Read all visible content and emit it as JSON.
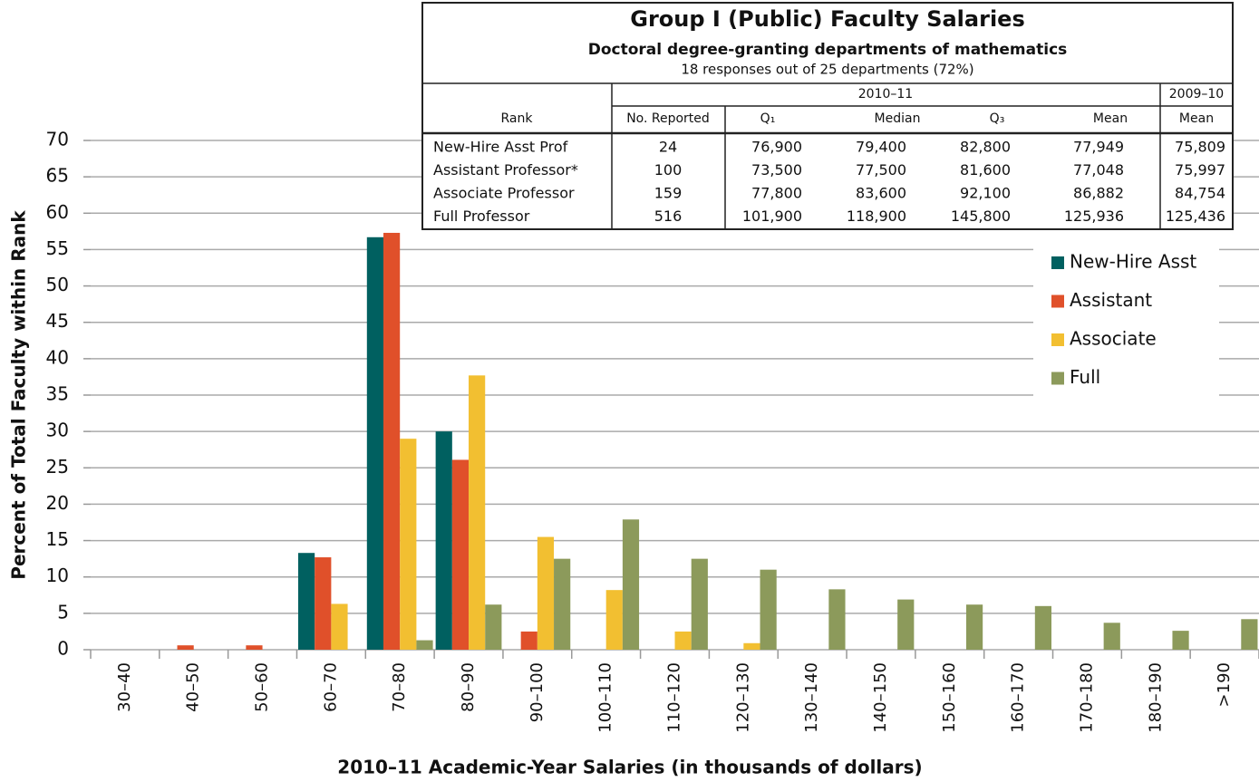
{
  "chart_data": {
    "type": "bar",
    "y_label": "Percent of Total Faculty within Rank",
    "x_label": "2010–11 Academic-Year Salaries (in thousands of dollars)",
    "categories": [
      "30–40",
      "40–50",
      "50–60",
      "60–70",
      "70–80",
      "80–90",
      "90–100",
      "100–110",
      "110–120",
      "120–130",
      "130–140",
      "140–150",
      "150–160",
      "160–170",
      "170–180",
      "180–190",
      ">190"
    ],
    "series": [
      {
        "name": "New-Hire Asst",
        "color": "#006060",
        "values": [
          0,
          0,
          0,
          13.3,
          56.7,
          30,
          0,
          0,
          0,
          0,
          0,
          0,
          0,
          0,
          0,
          0,
          0
        ]
      },
      {
        "name": "Assistant",
        "color": "#e0502a",
        "values": [
          0,
          0.6,
          0.6,
          12.7,
          57.3,
          26.1,
          2.5,
          0,
          0,
          0,
          0,
          0,
          0,
          0,
          0,
          0,
          0
        ]
      },
      {
        "name": "Associate",
        "color": "#f2bf31",
        "values": [
          0,
          0,
          0,
          6.3,
          29,
          37.7,
          15.5,
          8.2,
          2.5,
          0.9,
          0,
          0,
          0,
          0,
          0,
          0,
          0
        ]
      },
      {
        "name": "Full",
        "color": "#8c9a5b",
        "values": [
          0,
          0,
          0,
          0,
          1.3,
          6.2,
          12.5,
          17.9,
          12.5,
          11,
          8.3,
          6.9,
          6.2,
          6,
          3.7,
          2.6,
          4.2
        ]
      }
    ],
    "ylim": [
      0,
      70
    ],
    "yticks": [
      0,
      5,
      10,
      15,
      20,
      25,
      30,
      35,
      40,
      45,
      50,
      55,
      60,
      65,
      70
    ],
    "grid": true,
    "legend": "upper right"
  },
  "table": {
    "title": "Group I (Public) Faculty Salaries",
    "subtitle": "Doctoral degree-granting departments of mathematics",
    "note": "18 responses out of 25 departments (72%)",
    "year_current": "2010–11",
    "year_prior": "2009–10",
    "columns": [
      "Rank",
      "No. Reported",
      "Q₁",
      "Median",
      "Q₃",
      "Mean",
      "Mean"
    ],
    "rows": [
      [
        "New-Hire Asst Prof",
        "24",
        "76,900",
        "79,400",
        "82,800",
        "77,949",
        "75,809"
      ],
      [
        "Assistant Professor*",
        "100",
        "73,500",
        "77,500",
        "81,600",
        "77,048",
        "75,997"
      ],
      [
        "Associate Professor",
        "159",
        "77,800",
        "83,600",
        "92,100",
        "86,882",
        "84,754"
      ],
      [
        "Full Professor",
        "516",
        "101,900",
        "118,900",
        "145,800",
        "125,936",
        "125,436"
      ]
    ]
  }
}
